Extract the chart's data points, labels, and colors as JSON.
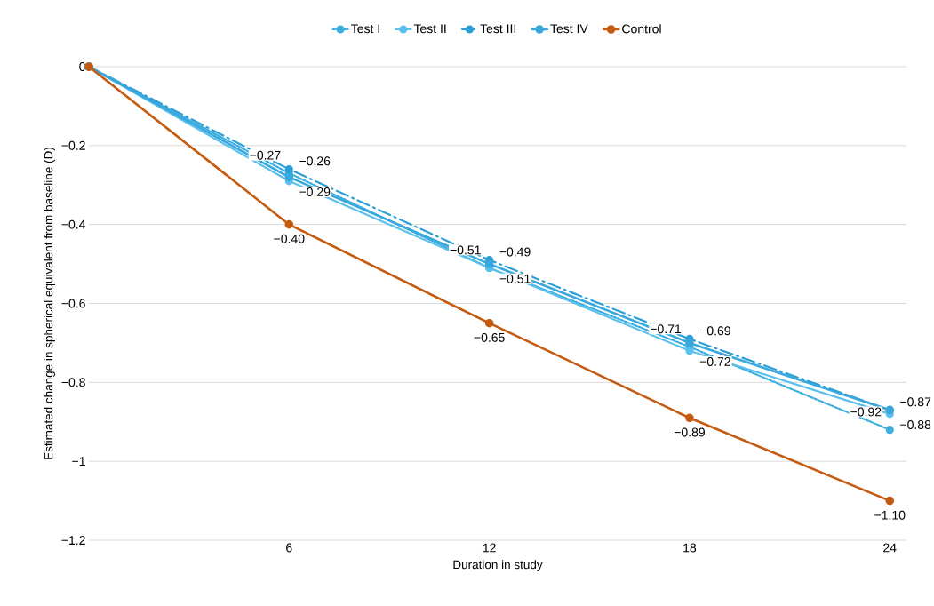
{
  "chart_data": {
    "type": "line",
    "xlabel": "Duration in study",
    "ylabel": "Estimated change in spherical equivalent  from baseline (D)",
    "x": [
      0,
      6,
      12,
      18,
      24
    ],
    "xlim": [
      0,
      24.5
    ],
    "xticks": [
      6,
      12,
      18,
      24
    ],
    "ylim": [
      -1.2,
      0
    ],
    "yticks": [
      {
        "value": 0,
        "label": "0"
      },
      {
        "value": -0.2,
        "label": "−0.2"
      },
      {
        "value": -0.4,
        "label": "−0.4"
      },
      {
        "value": -0.6,
        "label": "−0.6"
      },
      {
        "value": -0.8,
        "label": "−0.8"
      },
      {
        "value": -1,
        "label": "−1"
      },
      {
        "value": -1.2,
        "label": "−1.2"
      }
    ],
    "grid": "y",
    "legend": "top",
    "marker": "circle",
    "series": [
      {
        "name": "Test I",
        "color": "#3aaee0",
        "line_style": "dotted",
        "values": [
          0,
          -0.27,
          -0.51,
          -0.71,
          -0.92
        ],
        "value_labels": [
          null,
          "−0.27",
          "−0.51",
          "−0.71",
          "−0.92"
        ]
      },
      {
        "name": "Test II",
        "color": "#5bc0eb",
        "line_style": "solid",
        "values": [
          0,
          -0.29,
          -0.51,
          -0.72,
          -0.88
        ],
        "value_labels": [
          null,
          "−0.29",
          "−0.51",
          "−0.72",
          "−0.88"
        ]
      },
      {
        "name": "Test III",
        "color": "#2e9fd6",
        "line_style": "dashed",
        "values": [
          0,
          -0.26,
          -0.49,
          -0.69,
          -0.87
        ],
        "value_labels": [
          null,
          "−0.26",
          "−0.49",
          "−0.69",
          "−0.87"
        ]
      },
      {
        "name": "Test IV",
        "color": "#3aa8dc",
        "line_style": "solid",
        "values": [
          0,
          -0.28,
          -0.5,
          -0.7,
          -0.87
        ]
      },
      {
        "name": "Control",
        "color": "#c55a11",
        "line_style": "solid",
        "values": [
          0,
          -0.4,
          -0.65,
          -0.89,
          -1.1
        ],
        "value_labels": [
          null,
          "−0.40",
          "−0.65",
          "−0.89",
          "−1.10"
        ]
      }
    ]
  }
}
